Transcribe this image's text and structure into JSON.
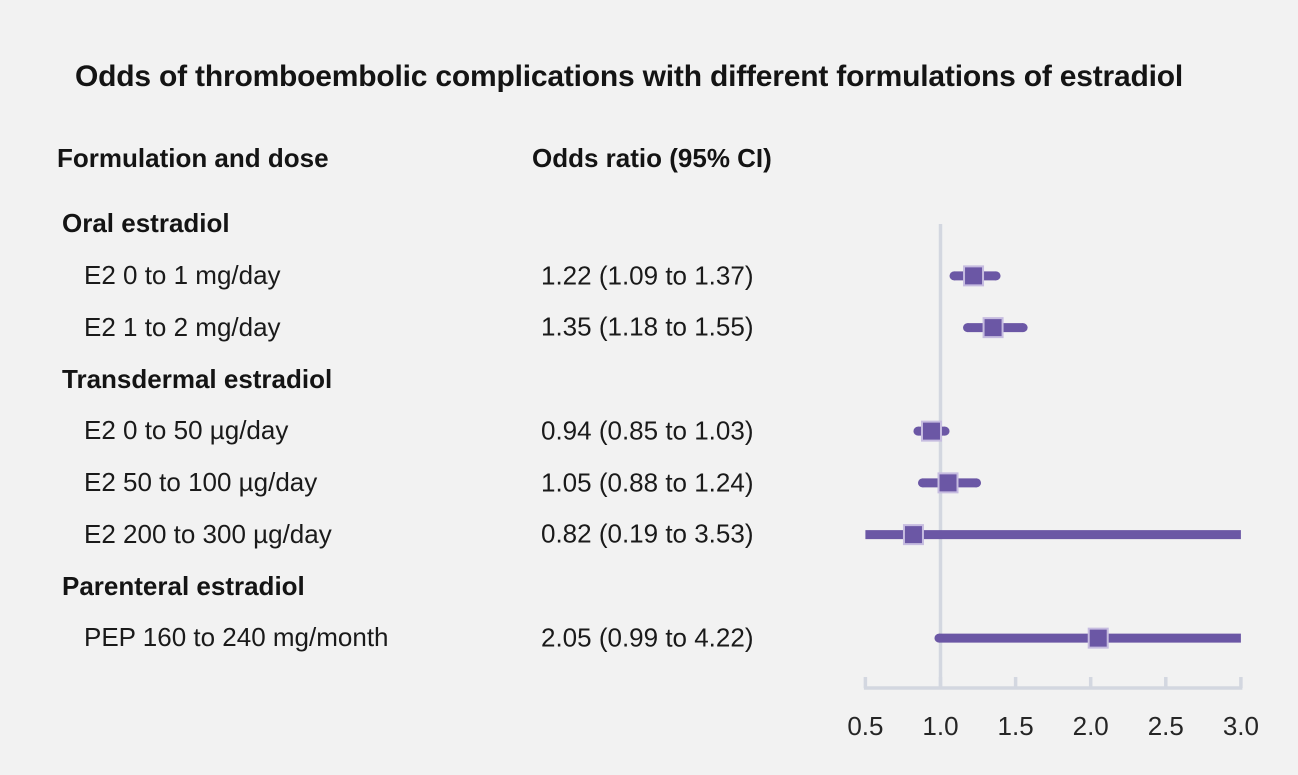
{
  "title": "Odds of thromboembolic complications with different formulations of estradiol",
  "columns": {
    "formulation": "Formulation and dose",
    "odds_ratio": "Odds ratio (95% CI)"
  },
  "colors": {
    "background": "#f2f2f2",
    "text": "#1a1a1a",
    "marker": "#6b57a5",
    "marker_border": "#c6bce0",
    "axis": "#d3d7e0"
  },
  "chart_data": {
    "type": "forest",
    "title": "Odds of thromboembolic complications with different formulations of estradiol",
    "xlabel": "Odds ratio",
    "xlim": [
      0.5,
      3.0
    ],
    "reference_line": 1.0,
    "ticks": [
      0.5,
      1.0,
      1.5,
      2.0,
      2.5,
      3.0
    ],
    "tick_labels": [
      "0.5",
      "1.0",
      "1.5",
      "2.0",
      "2.5",
      "3.0"
    ],
    "rows": [
      {
        "kind": "group",
        "label": "Oral estradiol"
      },
      {
        "kind": "item",
        "label": "E2 0 to 1 mg/day",
        "value_text": "1.22 (1.09 to 1.37)",
        "estimate": 1.22,
        "ci_low": 1.09,
        "ci_high": 1.37
      },
      {
        "kind": "item",
        "label": "E2 1 to 2 mg/day",
        "value_text": "1.35 (1.18 to 1.55)",
        "estimate": 1.35,
        "ci_low": 1.18,
        "ci_high": 1.55
      },
      {
        "kind": "group",
        "label": "Transdermal estradiol"
      },
      {
        "kind": "item",
        "label": "E2 0 to 50 µg/day",
        "value_text": "0.94 (0.85 to 1.03)",
        "estimate": 0.94,
        "ci_low": 0.85,
        "ci_high": 1.03
      },
      {
        "kind": "item",
        "label": "E2 50 to 100 µg/day",
        "value_text": "1.05 (0.88 to 1.24)",
        "estimate": 1.05,
        "ci_low": 0.88,
        "ci_high": 1.24
      },
      {
        "kind": "item",
        "label": "E2 200 to 300 µg/day",
        "value_text": "0.82 (0.19 to 3.53)",
        "estimate": 0.82,
        "ci_low": 0.19,
        "ci_high": 3.53
      },
      {
        "kind": "group",
        "label": "Parenteral estradiol"
      },
      {
        "kind": "item",
        "label": "PEP 160 to 240 mg/month",
        "value_text": "2.05 (0.99 to 4.22)",
        "estimate": 2.05,
        "ci_low": 0.99,
        "ci_high": 4.22
      }
    ]
  }
}
